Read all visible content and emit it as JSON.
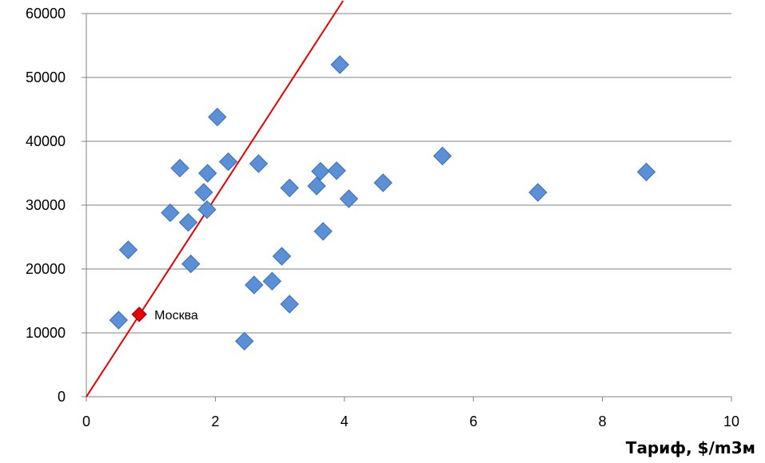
{
  "chart_data": {
    "type": "scatter",
    "title": "",
    "xlabel": "Тариф, $/m3м",
    "ylabel": "",
    "xlim": [
      0,
      10
    ],
    "ylim": [
      0,
      60000
    ],
    "x_ticks": [
      "0",
      "2",
      "4",
      "6",
      "8",
      "10"
    ],
    "y_ticks": [
      "0",
      "10000",
      "20000",
      "30000",
      "40000",
      "50000",
      "60000"
    ],
    "grid": "horizontal",
    "legend": "none",
    "colors": {
      "points": "#5b8fd6",
      "highlight": "#e60000",
      "trendline": "#e60000",
      "grid": "#808080"
    },
    "points": [
      {
        "x": 0.5,
        "y": 12000
      },
      {
        "x": 0.65,
        "y": 23000
      },
      {
        "x": 1.3,
        "y": 28800
      },
      {
        "x": 1.45,
        "y": 35800
      },
      {
        "x": 1.58,
        "y": 27300
      },
      {
        "x": 1.62,
        "y": 20800
      },
      {
        "x": 1.82,
        "y": 32000
      },
      {
        "x": 1.87,
        "y": 29300
      },
      {
        "x": 1.88,
        "y": 35000
      },
      {
        "x": 2.03,
        "y": 43800
      },
      {
        "x": 2.2,
        "y": 36800
      },
      {
        "x": 2.45,
        "y": 8700
      },
      {
        "x": 2.6,
        "y": 17500
      },
      {
        "x": 2.67,
        "y": 36500
      },
      {
        "x": 2.88,
        "y": 18100
      },
      {
        "x": 3.03,
        "y": 22000
      },
      {
        "x": 3.15,
        "y": 32700
      },
      {
        "x": 3.15,
        "y": 14500
      },
      {
        "x": 3.57,
        "y": 33000
      },
      {
        "x": 3.63,
        "y": 35300
      },
      {
        "x": 3.67,
        "y": 25900
      },
      {
        "x": 3.88,
        "y": 35400
      },
      {
        "x": 3.93,
        "y": 52000
      },
      {
        "x": 4.07,
        "y": 31000
      },
      {
        "x": 4.6,
        "y": 33500
      },
      {
        "x": 5.52,
        "y": 37700
      },
      {
        "x": 7.0,
        "y": 32000
      },
      {
        "x": 8.68,
        "y": 35200
      }
    ],
    "highlight": {
      "x": 0.82,
      "y": 12900,
      "label": "Москва"
    },
    "trendline": {
      "from": [
        0,
        0
      ],
      "to": [
        3.98,
        62000
      ]
    }
  }
}
